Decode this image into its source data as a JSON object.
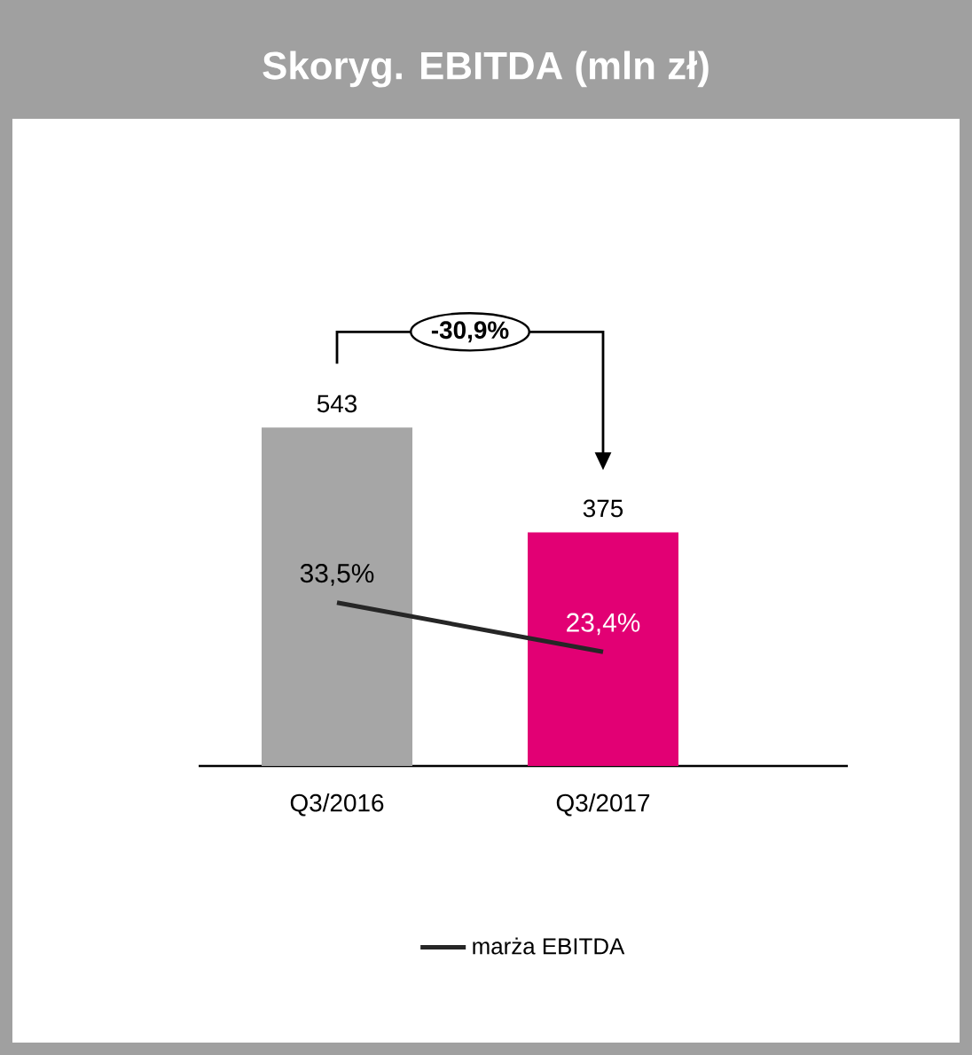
{
  "chart_data": {
    "type": "bar",
    "title": "Skoryg. EBITDA (mln zł)",
    "categories": [
      "Q3/2016",
      "Q3/2017"
    ],
    "legend": "bottom",
    "data_labels": true,
    "annotations": [
      "-30,9%"
    ],
    "series": [
      {
        "colors": [
          "#a6a6a6",
          "#e20074"
        ],
        "values": [
          543,
          375
        ]
      },
      {
        "type": "line",
        "name": "marża EBITDA",
        "color": "#262626",
        "axis": "y2",
        "values": [
          33.5,
          23.4
        ],
        "value_labels": [
          "33,5%",
          "23,4%"
        ]
      }
    ]
  }
}
